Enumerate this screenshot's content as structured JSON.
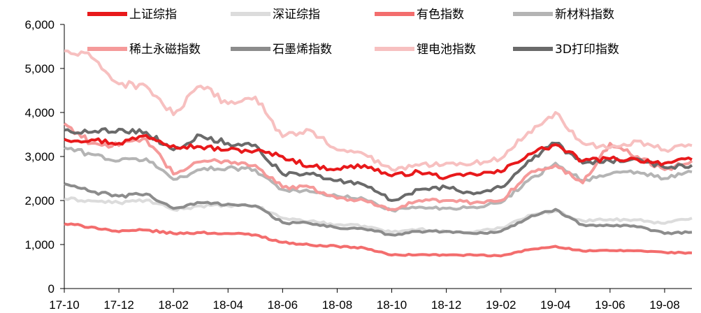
{
  "chart_data": {
    "type": "line",
    "title": "",
    "xlabel": "",
    "ylabel": "",
    "ylim": [
      0,
      6000
    ],
    "yticks": [
      "0",
      "1,000",
      "2,000",
      "3,000",
      "4,000",
      "5,000",
      "6,000"
    ],
    "ytick_values": [
      0,
      1000,
      2000,
      3000,
      4000,
      5000,
      6000
    ],
    "xlim": [
      "2017-10",
      "2019-09"
    ],
    "xticks": [
      "17-10",
      "17-12",
      "18-02",
      "18-04",
      "18-06",
      "18-08",
      "18-10",
      "18-12",
      "19-02",
      "19-04",
      "19-06",
      "19-08"
    ],
    "grid": false,
    "legend": "top",
    "x": [
      "2017-10",
      "2017-11",
      "2017-12",
      "2018-01",
      "2018-02",
      "2018-03",
      "2018-04",
      "2018-05",
      "2018-06",
      "2018-07",
      "2018-08",
      "2018-09",
      "2018-10",
      "2018-11",
      "2018-12",
      "2019-01",
      "2019-02",
      "2019-03",
      "2019-04",
      "2019-05",
      "2019-06",
      "2019-07",
      "2019-08",
      "2019-09"
    ],
    "series": [
      {
        "name": "上证综指",
        "color": "#e8191b",
        "width": 4,
        "values": [
          3390,
          3380,
          3300,
          3480,
          3250,
          3220,
          3150,
          3130,
          3000,
          2780,
          2720,
          2800,
          2560,
          2650,
          2520,
          2600,
          2650,
          3050,
          3270,
          2900,
          2950,
          2930,
          2850,
          2930
        ]
      },
      {
        "name": "深证综指",
        "color": "#dcdcdc",
        "width": 4,
        "values": [
          2040,
          1990,
          1950,
          2010,
          1790,
          1880,
          1880,
          1880,
          1600,
          1530,
          1450,
          1420,
          1280,
          1350,
          1290,
          1280,
          1380,
          1660,
          1760,
          1540,
          1570,
          1560,
          1480,
          1600
        ]
      },
      {
        "name": "有色指数",
        "color": "#f36d6d",
        "width": 4,
        "values": [
          1470,
          1400,
          1290,
          1330,
          1250,
          1270,
          1250,
          1220,
          1050,
          990,
          960,
          920,
          760,
          770,
          760,
          760,
          740,
          880,
          960,
          850,
          860,
          860,
          820,
          810
        ]
      },
      {
        "name": "新材料指数",
        "color": "#b4b4b4",
        "width": 4,
        "values": [
          3200,
          3050,
          2900,
          2950,
          2480,
          2700,
          2750,
          2700,
          2250,
          2200,
          2100,
          2030,
          1780,
          1850,
          1820,
          1850,
          1950,
          2450,
          2850,
          2450,
          2600,
          2650,
          2500,
          2650
        ]
      },
      {
        "name": "稀土永磁指数",
        "color": "#f59a9a",
        "width": 4,
        "values": [
          3750,
          3300,
          3250,
          3400,
          2600,
          2880,
          2900,
          2800,
          2300,
          2300,
          2050,
          2000,
          1800,
          2000,
          2000,
          1950,
          2000,
          2600,
          2800,
          2400,
          3300,
          3000,
          2700,
          2900
        ]
      },
      {
        "name": "石墨烯指数",
        "color": "#8c8c8c",
        "width": 4,
        "values": [
          2380,
          2200,
          2100,
          2150,
          1820,
          1950,
          1920,
          1880,
          1500,
          1480,
          1380,
          1350,
          1220,
          1300,
          1300,
          1250,
          1300,
          1600,
          1800,
          1450,
          1430,
          1400,
          1250,
          1280
        ]
      },
      {
        "name": "锂电池指数",
        "color": "#f7c0c0",
        "width": 4,
        "values": [
          5400,
          5250,
          4650,
          4600,
          3950,
          4600,
          4200,
          4350,
          3450,
          3600,
          3150,
          3050,
          2700,
          2800,
          2850,
          2850,
          2950,
          3550,
          4000,
          3300,
          3200,
          3350,
          3150,
          3250
        ]
      },
      {
        "name": "3D打印指数",
        "color": "#6a6a6a",
        "width": 4,
        "values": [
          3600,
          3550,
          3620,
          3550,
          3150,
          3480,
          3300,
          3260,
          2600,
          2600,
          2450,
          2350,
          2000,
          2250,
          2300,
          2150,
          2300,
          2900,
          3300,
          2850,
          2900,
          2950,
          2750,
          2800
        ]
      }
    ]
  }
}
